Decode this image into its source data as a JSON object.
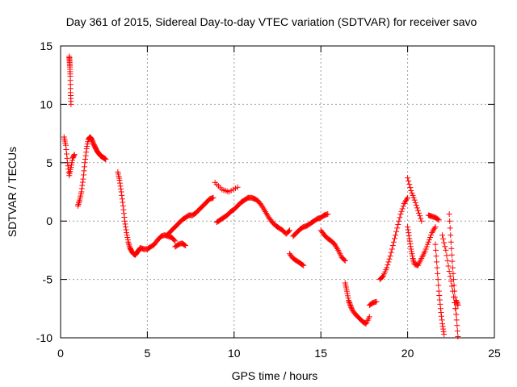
{
  "chart_data": {
    "type": "scatter",
    "title": "Day 361 of 2015, Sidereal Day-to-day VTEC variation (SDTVAR) for receiver savo",
    "xlabel": "GPS time / hours",
    "ylabel": "SDTVAR / TECUs",
    "xlim": [
      0,
      25
    ],
    "ylim": [
      -10,
      15
    ],
    "xticks": [
      0,
      5,
      10,
      15,
      20,
      25
    ],
    "yticks": [
      -10,
      -5,
      0,
      5,
      10,
      15
    ],
    "grid": true,
    "marker": "+",
    "colors": {
      "points": "#ff0000",
      "grid": "#a0a0a0",
      "axes": "#000000"
    },
    "series": [
      {
        "name": "SDTVAR",
        "segments": [
          {
            "x": [
              0.2,
              0.3,
              0.4,
              0.5,
              0.6,
              0.7,
              0.8
            ],
            "y": [
              7.2,
              6.5,
              5.0,
              3.9,
              4.6,
              5.4,
              5.7
            ]
          },
          {
            "x": [
              0.5,
              0.52,
              0.54,
              0.56,
              0.58,
              0.6
            ],
            "y": [
              14.1,
              13.7,
              13.2,
              12.4,
              11.0,
              10.0
            ]
          },
          {
            "x": [
              1.0,
              1.1,
              1.2,
              1.3,
              1.4,
              1.5,
              1.6,
              1.7,
              1.8,
              1.9,
              2.0,
              2.1,
              2.2,
              2.3,
              2.4,
              2.5,
              2.6
            ],
            "y": [
              1.3,
              1.8,
              2.5,
              3.6,
              5.0,
              6.2,
              7.0,
              7.2,
              7.0,
              6.6,
              6.3,
              6.0,
              5.8,
              5.6,
              5.5,
              5.4,
              5.3
            ]
          },
          {
            "x": [
              3.3,
              3.4,
              3.5,
              3.6,
              3.7,
              3.8,
              3.9,
              4.0,
              4.1,
              4.2,
              4.3,
              4.4,
              4.5,
              4.6,
              4.8,
              5.0,
              5.2,
              5.4,
              5.6,
              5.8,
              6.0,
              6.2,
              6.4,
              6.6
            ],
            "y": [
              4.2,
              3.5,
              2.5,
              1.3,
              0.0,
              -1.0,
              -1.8,
              -2.3,
              -2.6,
              -2.8,
              -2.9,
              -2.7,
              -2.5,
              -2.3,
              -2.4,
              -2.4,
              -2.2,
              -2.0,
              -1.6,
              -1.3,
              -1.2,
              -1.3,
              -1.4,
              -1.7
            ]
          },
          {
            "x": [
              6.6,
              6.8,
              7.0,
              7.2
            ],
            "y": [
              -2.2,
              -2.0,
              -1.9,
              -2.1
            ]
          },
          {
            "x": [
              6.2,
              6.4,
              6.6,
              6.8,
              7.0,
              7.2,
              7.4,
              7.6,
              7.8,
              8.0,
              8.2,
              8.4,
              8.6,
              8.8
            ],
            "y": [
              -1.1,
              -0.8,
              -0.5,
              -0.2,
              0.1,
              0.3,
              0.5,
              0.5,
              0.7,
              1.0,
              1.3,
              1.6,
              1.9,
              2.0
            ]
          },
          {
            "x": [
              9.0,
              9.2,
              9.4,
              9.6,
              9.8,
              10.0,
              10.2,
              10.4,
              10.6,
              10.8,
              11.0,
              11.2,
              11.4,
              11.6,
              11.8,
              12.0,
              12.2,
              12.4,
              12.6,
              12.8,
              13.0,
              13.2
            ],
            "y": [
              -0.1,
              0.1,
              0.3,
              0.5,
              0.8,
              1.0,
              1.3,
              1.6,
              1.8,
              2.0,
              2.0,
              1.9,
              1.7,
              1.3,
              0.8,
              0.3,
              -0.1,
              -0.4,
              -0.6,
              -0.8,
              -1.1,
              -0.8
            ]
          },
          {
            "x": [
              8.9,
              9.3,
              9.7,
              10.2
            ],
            "y": [
              3.3,
              2.7,
              2.5,
              2.9
            ]
          },
          {
            "x": [
              13.2,
              13.4,
              13.6,
              13.8,
              14.0
            ],
            "y": [
              -2.8,
              -3.2,
              -3.4,
              -3.6,
              -3.8
            ]
          },
          {
            "x": [
              13.4,
              13.6,
              13.8,
              14.0,
              14.2,
              14.4,
              14.6,
              14.8,
              15.0,
              15.2,
              15.4
            ],
            "y": [
              -1.3,
              -1.0,
              -0.7,
              -0.5,
              -0.4,
              -0.2,
              0.0,
              0.2,
              0.3,
              0.5,
              0.6
            ]
          },
          {
            "x": [
              15.0,
              15.2,
              15.4,
              15.6,
              15.8,
              16.0,
              16.2,
              16.4
            ],
            "y": [
              -0.8,
              -1.2,
              -1.5,
              -1.7,
              -2.0,
              -2.5,
              -3.1,
              -3.4
            ]
          },
          {
            "x": [
              16.4,
              16.5,
              16.6,
              16.7,
              16.8,
              17.0,
              17.2,
              17.4,
              17.6,
              17.8
            ],
            "y": [
              -5.3,
              -6.0,
              -6.8,
              -7.2,
              -7.6,
              -8.0,
              -8.3,
              -8.6,
              -8.8,
              -8.2
            ]
          },
          {
            "x": [
              17.8,
              18.0,
              18.2
            ],
            "y": [
              -7.2,
              -7.0,
              -6.9
            ]
          },
          {
            "x": [
              18.4,
              18.6,
              18.8,
              19.0,
              19.2,
              19.4,
              19.6,
              19.8,
              20.0
            ],
            "y": [
              -5.0,
              -4.7,
              -4.0,
              -3.0,
              -1.8,
              -0.6,
              0.6,
              1.5,
              2.0
            ]
          },
          {
            "x": [
              20.0,
              20.2,
              20.4,
              20.6,
              20.8
            ],
            "y": [
              3.7,
              2.6,
              1.8,
              0.9,
              0.0
            ]
          },
          {
            "x": [
              20.0,
              20.1,
              20.2,
              20.3,
              20.4,
              20.6,
              20.8,
              21.0,
              21.2,
              21.4,
              21.6
            ],
            "y": [
              -0.5,
              -1.5,
              -2.4,
              -3.2,
              -3.7,
              -3.8,
              -3.2,
              -2.6,
              -1.8,
              -1.0,
              -0.5
            ]
          },
          {
            "x": [
              21.6,
              21.7,
              21.8,
              21.9,
              22.0,
              22.1
            ],
            "y": [
              -2.0,
              -4.0,
              -6.0,
              -7.5,
              -8.8,
              -9.7
            ]
          },
          {
            "x": [
              21.2,
              21.4,
              21.6,
              21.8
            ],
            "y": [
              0.5,
              0.4,
              0.3,
              0.1
            ]
          },
          {
            "x": [
              22.0,
              22.2,
              22.4,
              22.6,
              22.8
            ],
            "y": [
              -1.2,
              -2.5,
              -4.3,
              -6.0,
              -8.0
            ]
          },
          {
            "x": [
              22.4,
              22.5,
              22.6,
              22.7,
              22.8,
              22.9
            ],
            "y": [
              0.6,
              -1.8,
              -4.0,
              -6.0,
              -8.0,
              -9.9
            ]
          },
          {
            "x": [
              22.8,
              22.9
            ],
            "y": [
              -6.8,
              -7.2
            ]
          }
        ]
      }
    ]
  }
}
